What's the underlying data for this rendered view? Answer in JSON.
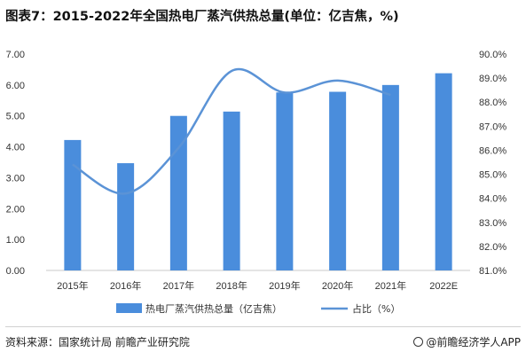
{
  "title": "图表7：2015-2022年全国热电厂蒸汽供热总量(单位：亿吉焦，%)",
  "source": "资料来源：国家统计局 前瞻产业研究院",
  "brand": "@前瞻经济学人APP",
  "colors": {
    "bar": "#4a8ddc",
    "line": "#5b93d6"
  },
  "chart_data": {
    "type": "bar",
    "categories": [
      "2015年",
      "2016年",
      "2017年",
      "2018年",
      "2019年",
      "2020年",
      "2021年",
      "2022E"
    ],
    "y_left_ticks": [
      "0.00",
      "1.00",
      "2.00",
      "3.00",
      "4.00",
      "5.00",
      "6.00",
      "7.00"
    ],
    "y_right_ticks": [
      "81.0%",
      "82.0%",
      "83.0%",
      "84.0%",
      "85.0%",
      "86.0%",
      "87.0%",
      "88.0%",
      "89.0%",
      "90.0%"
    ],
    "ylim_left": [
      0,
      7
    ],
    "ylim_right": [
      81,
      90
    ],
    "series": [
      {
        "name": "热电厂蒸汽供热总量（亿吉焦）",
        "type": "bar",
        "axis": "left",
        "values": [
          4.22,
          3.47,
          5.0,
          5.14,
          5.76,
          5.78,
          6.0,
          6.38
        ]
      },
      {
        "name": "占比（%）",
        "type": "line",
        "axis": "right",
        "values": [
          85.4,
          84.2,
          86.1,
          89.3,
          88.4,
          88.9,
          88.3,
          null
        ]
      }
    ],
    "legend_position": "bottom",
    "grid": false
  }
}
